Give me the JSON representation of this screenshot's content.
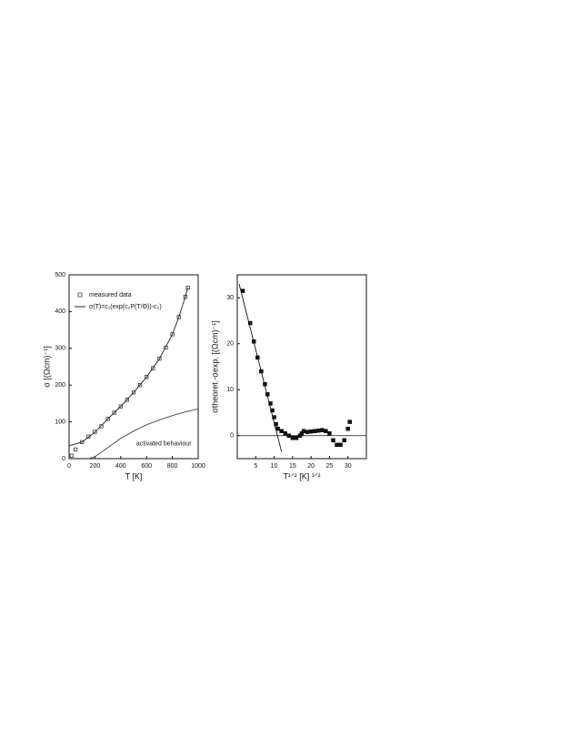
{
  "chart_data": [
    {
      "type": "scatter",
      "xlabel": "T  [K]",
      "ylabel": "σ   [(Ωcm)⁻¹]",
      "xlim": [
        0,
        1000
      ],
      "ylim": [
        0,
        500
      ],
      "xticks": [
        0,
        200,
        400,
        600,
        800,
        1000
      ],
      "yticks": [
        0,
        100,
        200,
        300,
        400,
        500
      ],
      "legend": "top-left",
      "annotation": "activated behaviour",
      "series": [
        {
          "name": "measured data",
          "color": "#222222",
          "marker": "open-square",
          "x": [
            20,
            50,
            100,
            150,
            200,
            250,
            300,
            350,
            400,
            450,
            500,
            550,
            600,
            650,
            700,
            750,
            800,
            850,
            900,
            920
          ],
          "values": [
            8,
            25,
            45,
            60,
            73,
            88,
            108,
            125,
            142,
            160,
            180,
            200,
            222,
            246,
            272,
            302,
            338,
            385,
            440,
            465
          ]
        },
        {
          "name": "σ(T)=c₁(exp(c₂P(T/Θ))-c₃)",
          "color": "#222222",
          "marker": "line",
          "x": [
            0,
            100,
            200,
            300,
            400,
            500,
            600,
            700,
            800,
            850,
            900,
            920
          ],
          "values": [
            35,
            45,
            72,
            108,
            142,
            180,
            222,
            272,
            338,
            385,
            440,
            465
          ]
        },
        {
          "color": "#444444",
          "marker": "line",
          "x": [
            150,
            200,
            300,
            400,
            500,
            600,
            700,
            800,
            900,
            1000
          ],
          "values": [
            0,
            5,
            30,
            55,
            75,
            92,
            105,
            117,
            127,
            135
          ]
        }
      ]
    },
    {
      "type": "scatter",
      "xlabel": "T¹ᐟ²  [K] ¹ᐟ²",
      "ylabel": "σtheoret.-σexp. [(Ωcm)⁻¹]",
      "xlim": [
        0,
        35
      ],
      "ylim": [
        -5,
        35
      ],
      "xticks": [
        5,
        10,
        15,
        20,
        25,
        30
      ],
      "yticks": [
        0,
        10,
        20,
        30
      ],
      "reference_line": 0,
      "series": [
        {
          "color": "#111111",
          "marker": "filled-square",
          "x": [
            1.5,
            3.5,
            4.5,
            5.5,
            6.5,
            7.5,
            8.2,
            9,
            9.5,
            10,
            10.5,
            11,
            12,
            13,
            14,
            15,
            16,
            17,
            17.5,
            18,
            19,
            20,
            21,
            22,
            23,
            24,
            25,
            26,
            27,
            28,
            29,
            30,
            30.5
          ],
          "values": [
            31.5,
            24.5,
            20.5,
            17,
            14,
            11.2,
            9,
            7,
            5.5,
            4,
            2.5,
            1.5,
            1,
            0.5,
            0,
            -0.5,
            -0.5,
            0,
            0.5,
            1,
            0.8,
            0.9,
            1,
            1.1,
            1.2,
            1,
            0.5,
            -1,
            -2,
            -2,
            -1,
            1.5,
            3
          ]
        },
        {
          "color": "#111111",
          "marker": "line",
          "x": [
            0.5,
            12
          ],
          "values": [
            33,
            -3.5
          ]
        }
      ]
    }
  ]
}
